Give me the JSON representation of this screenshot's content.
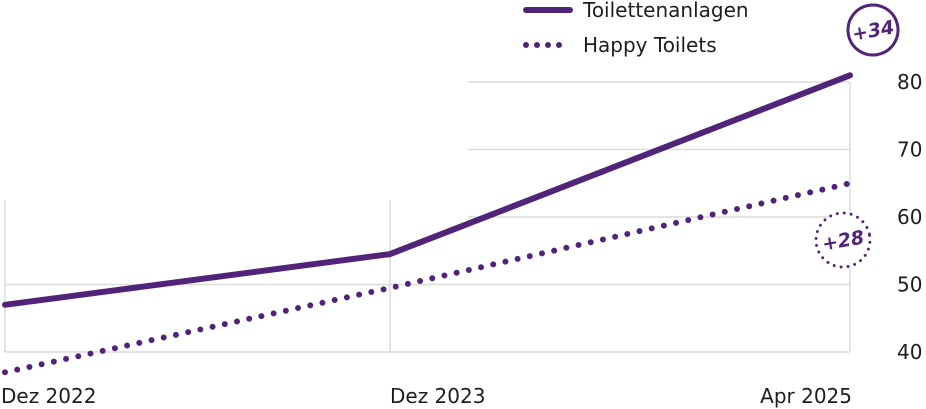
{
  "colors": {
    "series": "#522479",
    "grid": "#dcdcdc",
    "text": "#1e1e1e"
  },
  "legend": {
    "items": [
      {
        "label": "Toilettenanlagen",
        "style": "solid"
      },
      {
        "label": "Happy Toilets",
        "style": "dotted"
      }
    ]
  },
  "badges": {
    "solid": "+34",
    "dotted": "+28"
  },
  "chart_data": {
    "type": "line",
    "title": "",
    "xlabel": "",
    "ylabel": "",
    "x": [
      "Dez 2022",
      "Dez 2023",
      "Apr 2025"
    ],
    "y_ticks": [
      40,
      50,
      60,
      70,
      80
    ],
    "ylim": [
      40,
      80
    ],
    "y_axis_side": "right",
    "grid": true,
    "legend_position": "top",
    "series": [
      {
        "name": "Toilettenanlagen",
        "style": "solid",
        "values": [
          47,
          54.5,
          81
        ]
      },
      {
        "name": "Happy Toilets",
        "style": "dotted",
        "values": [
          37,
          49.5,
          65
        ]
      }
    ]
  }
}
